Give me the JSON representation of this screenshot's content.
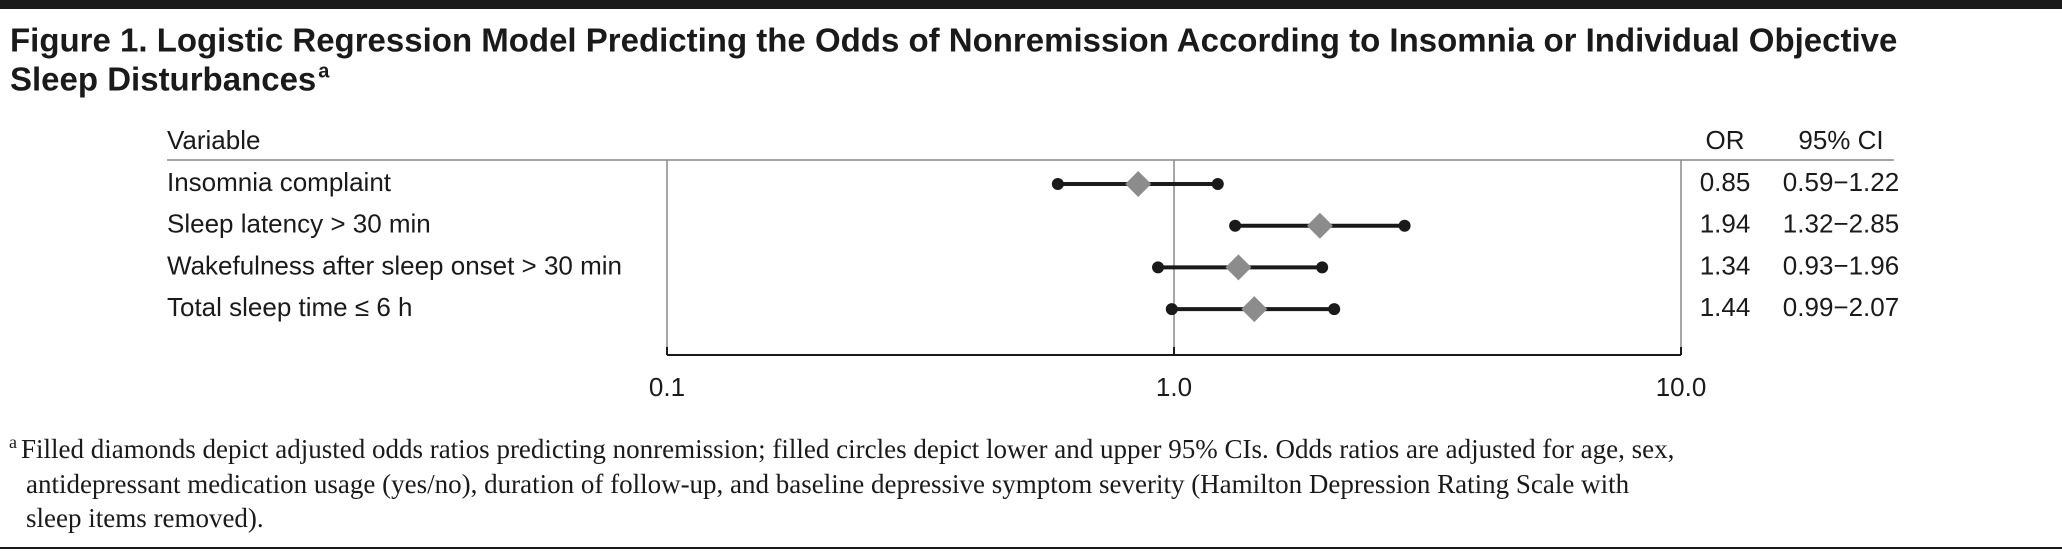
{
  "chart_data": {
    "type": "forest",
    "title": [
      "Figure 1. Logistic Regression Model Predicting the Odds of Nonremission According to Insomnia or Individual Objective",
      "Sleep Disturbances"
    ],
    "title_note_marker": "a",
    "column_headers": {
      "variable": "Variable",
      "or": "OR",
      "ci": "95% CI"
    },
    "categories": [
      "Insomnia complaint",
      "Sleep latency > 30 min",
      "Wakefulness after sleep onset > 30 min",
      "Total sleep time ≤ 6 h"
    ],
    "values": [
      0.85,
      1.94,
      1.34,
      1.44
    ],
    "lower": [
      0.59,
      1.32,
      0.93,
      0.99
    ],
    "upper": [
      1.22,
      2.85,
      1.96,
      2.07
    ],
    "ci_labels": [
      "0.59−1.22",
      "1.32−2.85",
      "0.93−1.96",
      "0.99−2.07"
    ],
    "marker_color": "#8c8c8c",
    "ci_color": "#1a1a1a",
    "xscale": "log",
    "xlim": [
      0.1,
      10
    ],
    "xticks": [
      0.1,
      {
        "value": 1,
        "label": "1.0"
      },
      {
        "value": 10,
        "label": "10.0"
      }
    ],
    "grid": true,
    "footnote_marker": "a",
    "footnote": [
      "Filled diamonds depict adjusted odds ratios predicting nonremission; filled circles depict lower and upper 95% CIs. Odds ratios are adjusted for age, sex,",
      "antidepressant medication usage (yes/no), duration of follow-up, and baseline depressive symptom severity (Hamilton Depression Rating Scale with",
      "sleep items removed)."
    ]
  }
}
